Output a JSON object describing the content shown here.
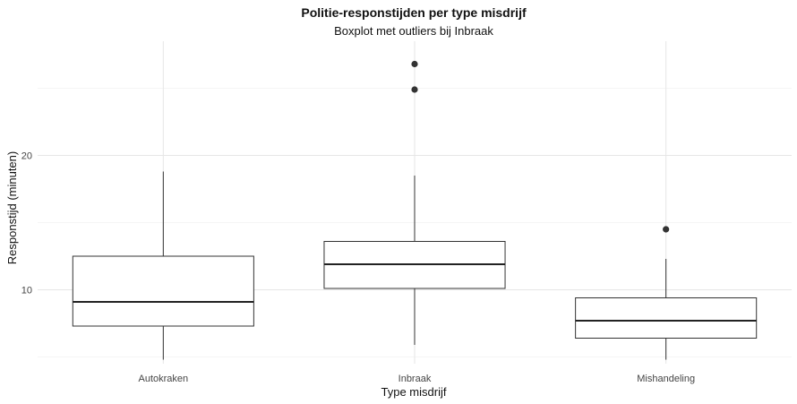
{
  "chart_data": {
    "type": "boxplot",
    "title": "Politie-responstijden per type misdrijf",
    "subtitle": "Boxplot met outliers bij Inbraak",
    "xlabel": "Type misdrijf",
    "ylabel": "Responstijd (minuten)",
    "ylim": [
      4.5,
      28.5
    ],
    "yticks": [
      10,
      20
    ],
    "grid": true,
    "legend": "none",
    "categories": [
      "Autokraken",
      "Inbraak",
      "Mishandeling"
    ],
    "boxes": [
      {
        "category": "Autokraken",
        "whisker_low": 4.8,
        "q1": 7.3,
        "median": 9.1,
        "q3": 12.5,
        "whisker_high": 18.8,
        "outliers": []
      },
      {
        "category": "Inbraak",
        "whisker_low": 5.9,
        "q1": 10.1,
        "median": 11.9,
        "q3": 13.6,
        "whisker_high": 18.5,
        "outliers": [
          24.9,
          26.8
        ]
      },
      {
        "category": "Mishandeling",
        "whisker_low": 4.8,
        "q1": 6.4,
        "median": 7.7,
        "q3": 9.4,
        "whisker_high": 12.3,
        "outliers": [
          14.5
        ]
      }
    ]
  }
}
